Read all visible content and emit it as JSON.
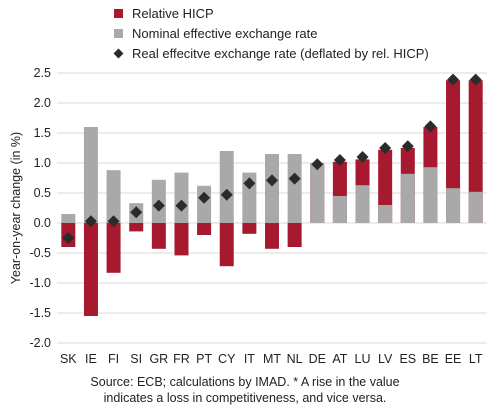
{
  "chart_data": {
    "type": "bar",
    "title": "",
    "xlabel": "",
    "ylabel": "Year-on-year change (in %)",
    "ylim": [
      -2.0,
      2.5
    ],
    "yticks": [
      "2.5",
      "2.0",
      "1.5",
      "1.0",
      "0.5",
      "0.0",
      "-0.5",
      "-1.0",
      "-1.5",
      "-2.0"
    ],
    "yticks_values": [
      2.5,
      2.0,
      1.5,
      1.0,
      0.5,
      0.0,
      -0.5,
      -1.0,
      -1.5,
      -2.0
    ],
    "grid": true,
    "legend_position": "top",
    "categories": [
      "SK",
      "IE",
      "FI",
      "SI",
      "GR",
      "FR",
      "PT",
      "CY",
      "IT",
      "MT",
      "NL",
      "DE",
      "AT",
      "LU",
      "LV",
      "ES",
      "BE",
      "EE",
      "LT"
    ],
    "series": [
      {
        "name": "Relative HICP",
        "kind": "bar",
        "color": "#a6192e",
        "values": [
          -0.4,
          -1.55,
          -0.83,
          -0.14,
          -0.43,
          -0.54,
          -0.2,
          -0.72,
          -0.18,
          -0.43,
          -0.4,
          0.98,
          1.02,
          1.06,
          1.22,
          1.25,
          1.6,
          2.38,
          2.38
        ]
      },
      {
        "name": "Nominal effective exchange rate",
        "kind": "bar",
        "color": "#a9a9a9",
        "values": [
          0.15,
          1.6,
          0.88,
          0.33,
          0.72,
          0.84,
          0.62,
          1.2,
          0.84,
          1.15,
          1.15,
          1.0,
          0.45,
          0.63,
          0.3,
          0.82,
          0.93,
          0.58,
          0.52
        ]
      },
      {
        "name": "Real effecitve exchange rate (deflated by rel. HICP)",
        "kind": "marker",
        "color": "#2b2b2b",
        "values": [
          -0.25,
          0.03,
          0.03,
          0.18,
          0.29,
          0.29,
          0.42,
          0.47,
          0.66,
          0.71,
          0.74,
          0.98,
          1.05,
          1.1,
          1.25,
          1.28,
          1.61,
          2.39,
          2.39
        ]
      }
    ]
  },
  "source_note": {
    "line1": "Source: ECB; calculations by IMAD. * A rise in the value",
    "line2": "indicates a loss in competitiveness, and vice versa."
  }
}
